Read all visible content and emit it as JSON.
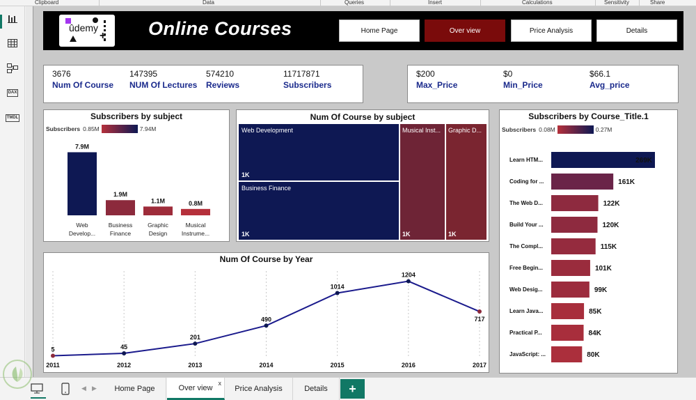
{
  "ribbon": [
    "Clipboard",
    "Data",
    "Queries",
    "Insert",
    "Calculations",
    "Sensitivity",
    "Share"
  ],
  "leftbar": {
    "report_icon": "bar-chart-icon",
    "table_icon": "table-icon",
    "model_icon": "model-icon",
    "dax_label": "DAX",
    "tmdl_label": "TMDL"
  },
  "header": {
    "logo_text": "ûdemy",
    "title": "Online Courses",
    "nav": [
      "Home Page",
      "Over view",
      "Price Analysis",
      "Details"
    ],
    "active_nav": "Over view"
  },
  "kpis_left": [
    {
      "value": "3676",
      "label": "Num Of Course"
    },
    {
      "value": "147395",
      "label": "NUM Of Lectures"
    },
    {
      "value": "574210",
      "label": "Reviews"
    },
    {
      "value": "11717871",
      "label": "Subscribers"
    }
  ],
  "kpis_right": [
    {
      "value": "$200",
      "label": "Max_Price"
    },
    {
      "value": "$0",
      "label": "Min_Price"
    },
    {
      "value": "$66.1",
      "label": "Avg_price"
    }
  ],
  "colors": {
    "dark_navy": "#0e1853",
    "dark_red": "#7a0b0b",
    "mid_red": "#a22d3a",
    "accent_green": "#117865",
    "line": "#1a1a8c"
  },
  "chart_data": [
    {
      "type": "bar",
      "title": "Subscribers by subject",
      "legend": {
        "label": "Subscribers",
        "min": "0.85M",
        "max": "7.94M"
      },
      "categories": [
        "Web Develop...",
        "Business Finance",
        "Graphic Design",
        "Musical Instrume..."
      ],
      "values": [
        7.9,
        1.9,
        1.1,
        0.8
      ],
      "data_labels": [
        "7.9M",
        "1.9M",
        "1.1M",
        "0.8M"
      ],
      "colors": [
        "#0e1853",
        "#8c2a3c",
        "#9e2c3a",
        "#b5303b"
      ]
    },
    {
      "type": "heatmap",
      "title": "Num Of Course by subject",
      "categories": [
        "Web Development",
        "Business Finance",
        "Musical Inst...",
        "Graphic D..."
      ],
      "data_labels": [
        "1K",
        "1K",
        "1K",
        "1K"
      ],
      "colors": [
        "#0e1853",
        "#0e1853",
        "#6e2436",
        "#7a2530"
      ]
    },
    {
      "type": "bar",
      "title": "Subscribers by Course_Title.1",
      "legend": {
        "label": "Subscribers",
        "min": "0.08M",
        "max": "0.27M"
      },
      "categories": [
        "Learn HTM...",
        "Coding for ...",
        "The Web D...",
        "Build Your ...",
        "The Compl...",
        "Free Begin...",
        "Web Desig...",
        "Learn Java...",
        "Practical P...",
        "JavaScript: ..."
      ],
      "values": [
        269,
        161,
        122,
        120,
        115,
        101,
        99,
        85,
        84,
        80
      ],
      "data_labels": [
        "269K",
        "161K",
        "122K",
        "120K",
        "115K",
        "101K",
        "99K",
        "85K",
        "84K",
        "80K"
      ],
      "colors": [
        "#0e1853",
        "#6a2448",
        "#8e2a3f",
        "#8e2a3f",
        "#952b3e",
        "#9a2c3d",
        "#9c2c3d",
        "#a82e3c",
        "#a82e3c",
        "#ab2f3c"
      ]
    },
    {
      "type": "line",
      "title": "Num Of Course by Year",
      "x": [
        "2011",
        "2012",
        "2013",
        "2014",
        "2015",
        "2016",
        "2017"
      ],
      "values": [
        5,
        45,
        201,
        490,
        1014,
        1204,
        717
      ],
      "ylim": [
        0,
        1300
      ]
    }
  ],
  "pages": [
    "Home Page",
    "Over view",
    "Price Analysis",
    "Details"
  ],
  "active_page": "Over view",
  "close_glyph": "x",
  "add_page_glyph": "+"
}
